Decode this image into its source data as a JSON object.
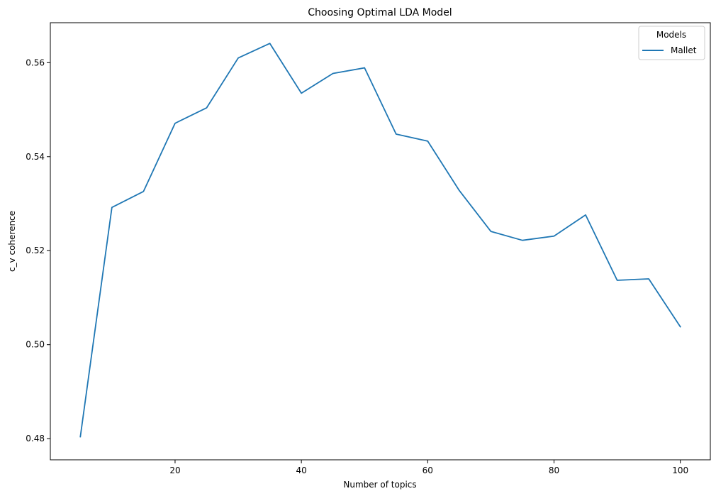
{
  "chart_data": {
    "type": "line",
    "title": "Choosing Optimal LDA Model",
    "xlabel": "Number of topics",
    "ylabel": "c_v coherence",
    "xlim": [
      0.25,
      104.75
    ],
    "ylim": [
      0.4755,
      0.5685
    ],
    "xticks": [
      20,
      40,
      60,
      80,
      100
    ],
    "yticks": [
      0.48,
      0.5,
      0.52,
      0.54,
      0.56
    ],
    "ytick_labels": [
      "0.48",
      "0.50",
      "0.52",
      "0.54",
      "0.56"
    ],
    "grid": false,
    "legend": {
      "title": "Models",
      "position": "top-right"
    },
    "series": [
      {
        "name": "Mallet",
        "color": "#1f77b4",
        "x": [
          5,
          10,
          15,
          20,
          25,
          30,
          35,
          40,
          45,
          50,
          55,
          60,
          65,
          70,
          75,
          80,
          85,
          90,
          95,
          100
        ],
        "y": [
          0.4804,
          0.5292,
          0.5326,
          0.5471,
          0.5504,
          0.561,
          0.5641,
          0.5535,
          0.5577,
          0.5589,
          0.5448,
          0.5433,
          0.5328,
          0.5241,
          0.5222,
          0.5231,
          0.5276,
          0.5137,
          0.514,
          0.5038
        ]
      }
    ]
  }
}
